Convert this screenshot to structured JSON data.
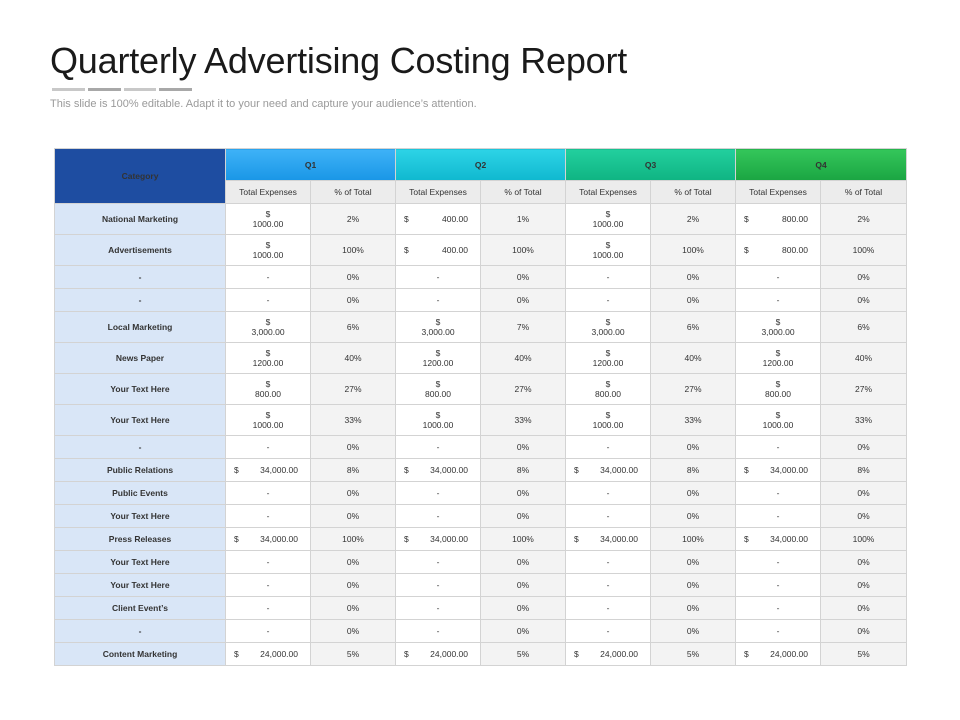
{
  "header": {
    "title": "Quarterly Advertising Costing Report",
    "subtitle": "This slide is 100% editable. Adapt it to your need and capture your audience’s attention."
  },
  "colors": {
    "category_header": "#1e4da1",
    "q1": "#1996e6",
    "q2": "#0fb8cf",
    "q3": "#0fb482",
    "q4": "#1aa542",
    "category_cell": "#d9e6f7"
  },
  "table": {
    "category_label": "Category",
    "quarters": [
      "Q1",
      "Q2",
      "Q3",
      "Q4"
    ],
    "subheaders": [
      "Total Expenses",
      "% of Total"
    ],
    "rows": [
      {
        "category": "National Marketing",
        "quarters": [
          {
            "expense": "$|1000.00",
            "layout": "stacked",
            "pct": "2%"
          },
          {
            "expense": "$|400.00",
            "layout": "inline",
            "pct": "1%"
          },
          {
            "expense": "$|1000.00",
            "layout": "stacked",
            "pct": "2%"
          },
          {
            "expense": "$|800.00",
            "layout": "inline",
            "pct": "2%"
          }
        ]
      },
      {
        "category": "Advertisements",
        "quarters": [
          {
            "expense": "$|1000.00",
            "layout": "stacked",
            "pct": "100%"
          },
          {
            "expense": "$|400.00",
            "layout": "inline",
            "pct": "100%"
          },
          {
            "expense": "$|1000.00",
            "layout": "stacked",
            "pct": "100%"
          },
          {
            "expense": "$|800.00",
            "layout": "inline",
            "pct": "100%"
          }
        ]
      },
      {
        "category": "-",
        "quarters": [
          {
            "expense": "-",
            "layout": "dash",
            "pct": "0%"
          },
          {
            "expense": "-",
            "layout": "dash",
            "pct": "0%"
          },
          {
            "expense": "-",
            "layout": "dash",
            "pct": "0%"
          },
          {
            "expense": "-",
            "layout": "dash",
            "pct": "0%"
          }
        ]
      },
      {
        "category": "-",
        "quarters": [
          {
            "expense": "-",
            "layout": "dash",
            "pct": "0%"
          },
          {
            "expense": "-",
            "layout": "dash",
            "pct": "0%"
          },
          {
            "expense": "-",
            "layout": "dash",
            "pct": "0%"
          },
          {
            "expense": "-",
            "layout": "dash",
            "pct": "0%"
          }
        ]
      },
      {
        "category": "Local Marketing",
        "quarters": [
          {
            "expense": "$|3,000.00",
            "layout": "stacked",
            "pct": "6%"
          },
          {
            "expense": "$|3,000.00",
            "layout": "stacked",
            "pct": "7%"
          },
          {
            "expense": "$|3,000.00",
            "layout": "stacked",
            "pct": "6%"
          },
          {
            "expense": "$|3,000.00",
            "layout": "stacked",
            "pct": "6%"
          }
        ]
      },
      {
        "category": "News Paper",
        "quarters": [
          {
            "expense": "$|1200.00",
            "layout": "stacked",
            "pct": "40%"
          },
          {
            "expense": "$|1200.00",
            "layout": "stacked",
            "pct": "40%"
          },
          {
            "expense": "$|1200.00",
            "layout": "stacked",
            "pct": "40%"
          },
          {
            "expense": "$|1200.00",
            "layout": "stacked",
            "pct": "40%"
          }
        ]
      },
      {
        "category": "Your Text Here",
        "quarters": [
          {
            "expense": "$|800.00",
            "layout": "stacked",
            "pct": "27%"
          },
          {
            "expense": "$|800.00",
            "layout": "stacked",
            "pct": "27%"
          },
          {
            "expense": "$|800.00",
            "layout": "stacked",
            "pct": "27%"
          },
          {
            "expense": "$|800.00",
            "layout": "stacked",
            "pct": "27%"
          }
        ]
      },
      {
        "category": "Your Text Here",
        "quarters": [
          {
            "expense": "$|1000.00",
            "layout": "stacked",
            "pct": "33%"
          },
          {
            "expense": "$|1000.00",
            "layout": "stacked",
            "pct": "33%"
          },
          {
            "expense": "$|1000.00",
            "layout": "stacked",
            "pct": "33%"
          },
          {
            "expense": "$|1000.00",
            "layout": "stacked",
            "pct": "33%"
          }
        ]
      },
      {
        "category": "-",
        "quarters": [
          {
            "expense": "-",
            "layout": "dash",
            "pct": "0%"
          },
          {
            "expense": "-",
            "layout": "dash",
            "pct": "0%"
          },
          {
            "expense": "-",
            "layout": "dash",
            "pct": "0%"
          },
          {
            "expense": "-",
            "layout": "dash",
            "pct": "0%"
          }
        ]
      },
      {
        "category": "Public Relations",
        "quarters": [
          {
            "expense": "$|34,000.00",
            "layout": "inline",
            "pct": "8%"
          },
          {
            "expense": "$|34,000.00",
            "layout": "inline",
            "pct": "8%"
          },
          {
            "expense": "$|34,000.00",
            "layout": "inline",
            "pct": "8%"
          },
          {
            "expense": "$|34,000.00",
            "layout": "inline",
            "pct": "8%"
          }
        ]
      },
      {
        "category": "Public Events",
        "quarters": [
          {
            "expense": "-",
            "layout": "dash",
            "pct": "0%"
          },
          {
            "expense": "-",
            "layout": "dash",
            "pct": "0%"
          },
          {
            "expense": "-",
            "layout": "dash",
            "pct": "0%"
          },
          {
            "expense": "-",
            "layout": "dash",
            "pct": "0%"
          }
        ]
      },
      {
        "category": "Your Text Here",
        "quarters": [
          {
            "expense": "-",
            "layout": "dash",
            "pct": "0%"
          },
          {
            "expense": "-",
            "layout": "dash",
            "pct": "0%"
          },
          {
            "expense": "-",
            "layout": "dash",
            "pct": "0%"
          },
          {
            "expense": "-",
            "layout": "dash",
            "pct": "0%"
          }
        ]
      },
      {
        "category": "Press Releases",
        "quarters": [
          {
            "expense": "$|34,000.00",
            "layout": "inline",
            "pct": "100%"
          },
          {
            "expense": "$|34,000.00",
            "layout": "inline",
            "pct": "100%"
          },
          {
            "expense": "$|34,000.00",
            "layout": "inline",
            "pct": "100%"
          },
          {
            "expense": "$|34,000.00",
            "layout": "inline",
            "pct": "100%"
          }
        ]
      },
      {
        "category": "Your Text Here",
        "quarters": [
          {
            "expense": "-",
            "layout": "dash",
            "pct": "0%"
          },
          {
            "expense": "-",
            "layout": "dash",
            "pct": "0%"
          },
          {
            "expense": "-",
            "layout": "dash",
            "pct": "0%"
          },
          {
            "expense": "-",
            "layout": "dash",
            "pct": "0%"
          }
        ]
      },
      {
        "category": "Your Text Here",
        "quarters": [
          {
            "expense": "-",
            "layout": "dash",
            "pct": "0%"
          },
          {
            "expense": "-",
            "layout": "dash",
            "pct": "0%"
          },
          {
            "expense": "-",
            "layout": "dash",
            "pct": "0%"
          },
          {
            "expense": "-",
            "layout": "dash",
            "pct": "0%"
          }
        ]
      },
      {
        "category": "Client Event’s",
        "quarters": [
          {
            "expense": "-",
            "layout": "dash",
            "pct": "0%"
          },
          {
            "expense": "-",
            "layout": "dash",
            "pct": "0%"
          },
          {
            "expense": "-",
            "layout": "dash",
            "pct": "0%"
          },
          {
            "expense": "-",
            "layout": "dash",
            "pct": "0%"
          }
        ]
      },
      {
        "category": "-",
        "quarters": [
          {
            "expense": "-",
            "layout": "dash",
            "pct": "0%"
          },
          {
            "expense": "-",
            "layout": "dash",
            "pct": "0%"
          },
          {
            "expense": "-",
            "layout": "dash",
            "pct": "0%"
          },
          {
            "expense": "-",
            "layout": "dash",
            "pct": "0%"
          }
        ]
      },
      {
        "category": "Content Marketing",
        "quarters": [
          {
            "expense": "$|24,000.00",
            "layout": "inline",
            "pct": "5%"
          },
          {
            "expense": "$|24,000.00",
            "layout": "inline",
            "pct": "5%"
          },
          {
            "expense": "$|24,000.00",
            "layout": "inline",
            "pct": "5%"
          },
          {
            "expense": "$|24,000.00",
            "layout": "inline",
            "pct": "5%"
          }
        ]
      }
    ]
  }
}
